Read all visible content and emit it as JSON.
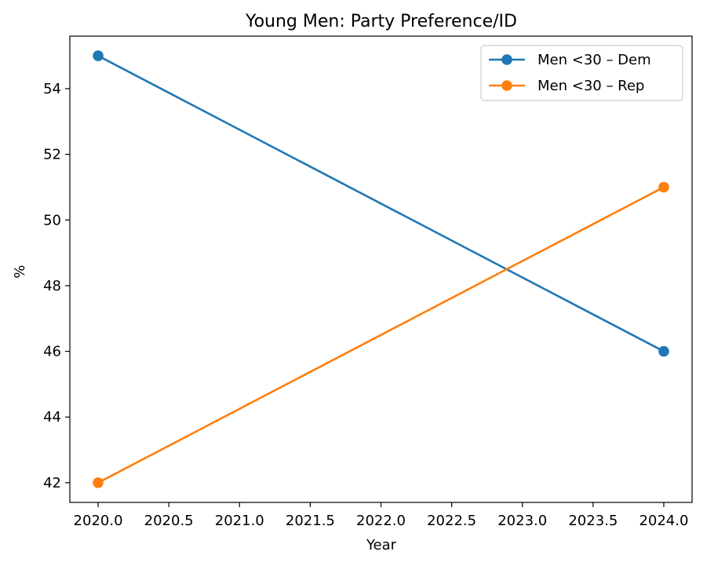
{
  "chart_data": {
    "type": "line",
    "title": "Young Men: Party Preference/ID",
    "xlabel": "Year",
    "ylabel": "%",
    "xlim": [
      2019.8,
      2024.2
    ],
    "ylim": [
      41.4,
      55.6
    ],
    "xticks": [
      2020.0,
      2020.5,
      2021.0,
      2021.5,
      2022.0,
      2022.5,
      2023.0,
      2023.5,
      2024.0
    ],
    "xtick_labels": [
      "2020.0",
      "2020.5",
      "2021.0",
      "2021.5",
      "2022.0",
      "2022.5",
      "2023.0",
      "2023.5",
      "2024.0"
    ],
    "yticks": [
      42,
      44,
      46,
      48,
      50,
      52,
      54
    ],
    "ytick_labels": [
      "42",
      "44",
      "46",
      "48",
      "50",
      "52",
      "54"
    ],
    "grid": false,
    "legend_position": "top-right",
    "series": [
      {
        "name": "Men <30 – Dem",
        "color": "#1f77b4",
        "x": [
          2020,
          2024
        ],
        "y": [
          55,
          46
        ],
        "marker": "circle"
      },
      {
        "name": "Men <30 – Rep",
        "color": "#ff7f0e",
        "x": [
          2020,
          2024
        ],
        "y": [
          42,
          51
        ],
        "marker": "circle"
      }
    ]
  }
}
